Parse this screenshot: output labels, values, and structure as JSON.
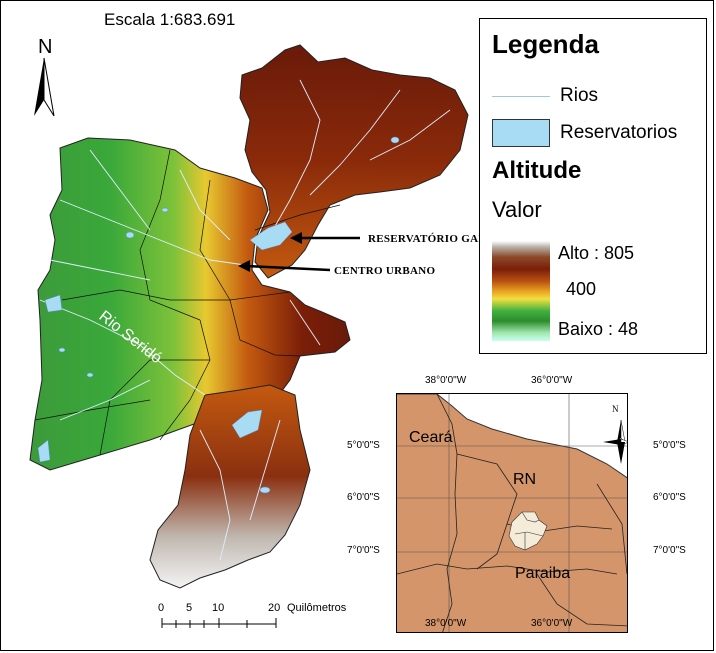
{
  "scale": "Escala 1:683.691",
  "north": "N",
  "legend": {
    "title": "Legenda",
    "rios": "Rios",
    "reservatorios": "Reservatorios",
    "altitude": "Altitude",
    "valor": "Valor",
    "alto": "Alto : 805",
    "mid": "400",
    "baixo": "Baixo : 48"
  },
  "callouts": {
    "reservatorio": "RESERVATÓRIO GARGALHEIRAS",
    "centro": "CENTRO URBANO"
  },
  "river_label": "Rio Seridó",
  "inset": {
    "lon_top": [
      "38°0'0\"W",
      "36°0'0\"W"
    ],
    "lon_bottom": [
      "38°0'0\"W",
      "36°0'0\"W"
    ],
    "lat_right": [
      "5°0'0\"S",
      "6°0'0\"S",
      "7°0'0\"S"
    ],
    "lat_left": [
      "5°0'0\"S",
      "6°0'0\"S",
      "7°0'0\"S"
    ],
    "ceara": "Ceará",
    "rn": "RN",
    "paraiba": "Paraiba",
    "north": "N"
  },
  "scalebar": {
    "ticks": [
      "0",
      "5",
      "10",
      "20"
    ],
    "unit": "Quilômetros"
  },
  "colors": {
    "reservoir": "#a8dcf4",
    "river": "#9ec4ef",
    "inset_land": "#d4956a"
  }
}
